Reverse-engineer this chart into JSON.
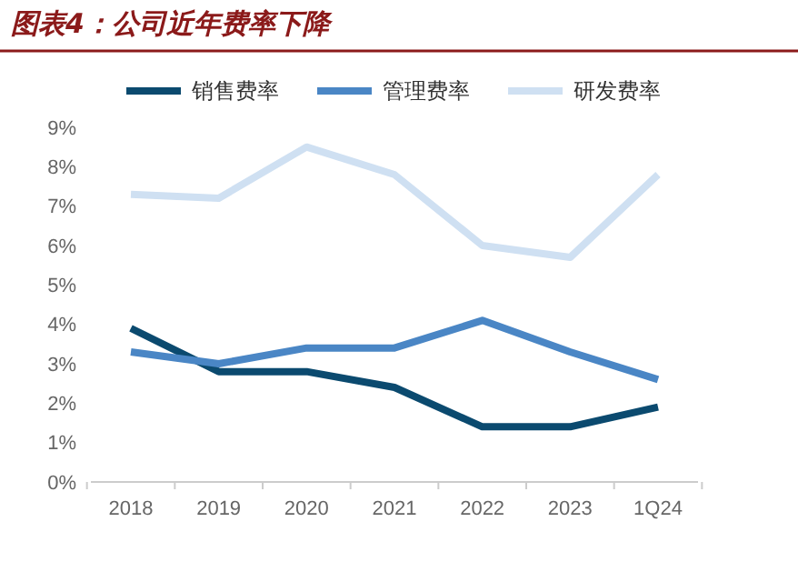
{
  "chart_data": {
    "type": "line",
    "title": "图表4：公司近年费率下降",
    "categories": [
      "2018",
      "2019",
      "2020",
      "2021",
      "2022",
      "2023",
      "1Q24"
    ],
    "series": [
      {
        "name": "销售费率",
        "color": "#0b4a6f",
        "values": [
          3.9,
          2.8,
          2.8,
          2.4,
          1.4,
          1.4,
          1.9
        ]
      },
      {
        "name": "管理费率",
        "color": "#4a86c5",
        "values": [
          3.3,
          3.0,
          3.4,
          3.4,
          4.1,
          3.3,
          2.6
        ]
      },
      {
        "name": "研发费率",
        "color": "#cfe0f2",
        "values": [
          7.3,
          7.2,
          8.5,
          7.8,
          6.0,
          5.7,
          7.8
        ]
      }
    ],
    "ylim": [
      0,
      9
    ],
    "yticks": [
      {
        "value": 0,
        "label": "0%"
      },
      {
        "value": 1,
        "label": "1%"
      },
      {
        "value": 2,
        "label": "2%"
      },
      {
        "value": 3,
        "label": "3%"
      },
      {
        "value": 4,
        "label": "4%"
      },
      {
        "value": 5,
        "label": "5%"
      },
      {
        "value": 6,
        "label": "6%"
      },
      {
        "value": 7,
        "label": "7%"
      },
      {
        "value": 8,
        "label": "8%"
      },
      {
        "value": 9,
        "label": "9%"
      }
    ],
    "grid": false,
    "legend": "top",
    "marker": "none",
    "line_style": "solid"
  }
}
